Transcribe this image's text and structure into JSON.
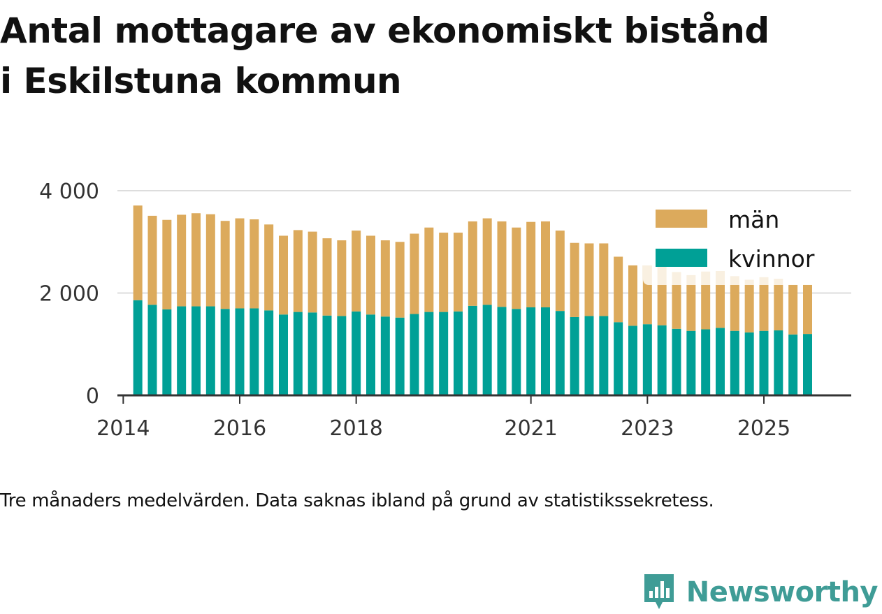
{
  "header": {
    "title_line1": "Antal mottagare av ekonomiskt bistånd",
    "title_line2": "i Eskilstuna kommun"
  },
  "footer": {
    "note": "Tre månaders medelvärden. Data saknas ibland på grund av statistikssekretess.",
    "brand": "Newsworthy"
  },
  "colors": {
    "men": "#dcaa5c",
    "women": "#00a096",
    "grid": "#dddddd",
    "axis": "#333333",
    "brand": "#3f9c96"
  },
  "icons": {
    "logo": "newsworthy-logo-icon"
  },
  "chart_data": {
    "type": "bar",
    "stacked": true,
    "title": "Antal mottagare av ekonomiskt bistånd i Eskilstuna kommun",
    "xlabel": "",
    "ylabel": "",
    "ylim": [
      0,
      4000
    ],
    "yticks": [
      0,
      2000,
      4000
    ],
    "ytick_labels": [
      "0",
      "2 000",
      "4 000"
    ],
    "xlim": [
      2013.9,
      2026.5
    ],
    "xticks": [
      2014,
      2016,
      2018,
      2021,
      2023,
      2025
    ],
    "xtick_labels": [
      "2014",
      "2016",
      "2018",
      "2021",
      "2023",
      "2025"
    ],
    "grid": true,
    "legend_position": "top-right",
    "x": [
      2014.25,
      2014.5,
      2014.75,
      2015.0,
      2015.25,
      2015.5,
      2015.75,
      2016.0,
      2016.25,
      2016.5,
      2016.75,
      2017.0,
      2017.25,
      2017.5,
      2017.75,
      2018.0,
      2018.25,
      2018.5,
      2018.75,
      2019.0,
      2019.25,
      2019.5,
      2019.75,
      2020.0,
      2020.25,
      2020.5,
      2020.75,
      2021.0,
      2021.25,
      2021.5,
      2021.75,
      2022.0,
      2022.25,
      2022.5,
      2022.75,
      2023.0,
      2023.25,
      2023.5,
      2023.75,
      2024.0,
      2024.25,
      2024.5,
      2024.75,
      2025.0,
      2025.25,
      2025.5,
      2025.75
    ],
    "series": [
      {
        "name": "kvinnor",
        "values": [
          1860,
          1770,
          1680,
          1740,
          1740,
          1740,
          1690,
          1700,
          1700,
          1660,
          1580,
          1630,
          1620,
          1560,
          1550,
          1640,
          1580,
          1540,
          1520,
          1590,
          1630,
          1630,
          1640,
          1750,
          1770,
          1730,
          1690,
          1720,
          1720,
          1650,
          1530,
          1550,
          1550,
          1430,
          1360,
          1390,
          1370,
          1300,
          1260,
          1290,
          1320,
          1260,
          1230,
          1260,
          1270,
          1190,
          1200
        ]
      },
      {
        "name": "män",
        "values": [
          1850,
          1740,
          1750,
          1790,
          1820,
          1800,
          1720,
          1760,
          1740,
          1680,
          1540,
          1600,
          1580,
          1510,
          1480,
          1580,
          1540,
          1490,
          1480,
          1570,
          1650,
          1550,
          1540,
          1650,
          1690,
          1670,
          1590,
          1670,
          1680,
          1570,
          1450,
          1420,
          1420,
          1280,
          1180,
          1150,
          1150,
          1110,
          1090,
          1130,
          1110,
          1070,
          1030,
          1050,
          1010,
          970,
          960
        ]
      }
    ],
    "legend": [
      "män",
      "kvinnor"
    ]
  }
}
